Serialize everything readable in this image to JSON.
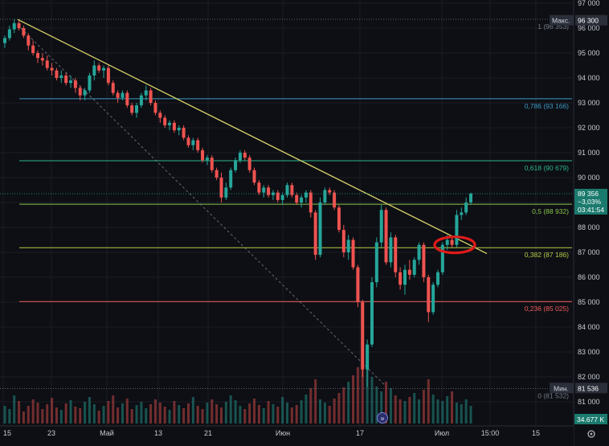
{
  "chart_data": {
    "type": "candlestick",
    "y_axis": {
      "min": 81000,
      "max": 97000,
      "ticks": [
        "97 000",
        "96 000",
        "95 000",
        "94 000",
        "93 000",
        "92 000",
        "91 000",
        "90 000",
        "89 000",
        "88 000",
        "87 000",
        "86 000",
        "85 000",
        "84 000",
        "83 000",
        "82 000",
        "81 000"
      ],
      "tick_values": [
        97000,
        96000,
        95000,
        94000,
        93000,
        92000,
        91000,
        90000,
        89000,
        88000,
        87000,
        86000,
        85000,
        84000,
        83000,
        82000,
        81000
      ]
    },
    "x_axis": {
      "ticks": [
        "15",
        "23",
        "Май",
        "13",
        "21",
        "Июн",
        "17",
        "Июл",
        "15:00",
        "15"
      ]
    },
    "fib_levels": [
      {
        "label": "1 (96 353)",
        "level": "1",
        "price": 96353,
        "color": "#787b86"
      },
      {
        "label": "0,786 (93 166)",
        "level": "0.786",
        "price": 93166,
        "color": "#3b99c2"
      },
      {
        "label": "0,618 (90 679)",
        "level": "0.618",
        "price": 90679,
        "color": "#2ab58a"
      },
      {
        "label": "0,5 (88 932)",
        "level": "0.5",
        "price": 88932,
        "color": "#8bc34a"
      },
      {
        "label": "0,382 (87 186)",
        "level": "0.382",
        "price": 87186,
        "color": "#b5cc43"
      },
      {
        "label": "0,236 (85 025)",
        "level": "0.236",
        "price": 85025,
        "color": "#f25c5c"
      },
      {
        "label": "0 (81 532)",
        "level": "0",
        "price": 81532,
        "color": "#787b86"
      }
    ],
    "max_marker": {
      "label": "Макс.",
      "value": "96 300",
      "price": 96300
    },
    "min_marker": {
      "label": "Мин.",
      "value": "81 536",
      "price": 81536
    },
    "last_price": {
      "value": "89 356",
      "change": "−3,03%",
      "countdown": "03:41:54",
      "price": 89356
    },
    "volume_label": "34.677 K",
    "trendline": {
      "from_price": 96350,
      "to_price": 86950,
      "color": "#d9d36a"
    },
    "diagonal": {
      "from_price": 96000,
      "to_price": 81700,
      "color": "#9a9ca5"
    },
    "highlight_ellipse_price": 87300,
    "candles": [
      [
        95400,
        95700,
        95200,
        95600
      ],
      [
        95600,
        96100,
        95500,
        95950
      ],
      [
        95950,
        96350,
        95800,
        96200
      ],
      [
        96200,
        96300,
        95900,
        96000
      ],
      [
        96000,
        96100,
        95600,
        95700
      ],
      [
        95700,
        95800,
        95100,
        95300
      ],
      [
        95300,
        95500,
        94900,
        95000
      ],
      [
        95000,
        95100,
        94600,
        94800
      ],
      [
        94800,
        95000,
        94500,
        94700
      ],
      [
        94700,
        94900,
        94300,
        94400
      ],
      [
        94400,
        94600,
        94100,
        94300
      ],
      [
        94300,
        94400,
        93900,
        94000
      ],
      [
        94000,
        94300,
        93800,
        94100
      ],
      [
        94100,
        94200,
        93700,
        93800
      ],
      [
        93800,
        94100,
        93600,
        93900
      ],
      [
        93900,
        94000,
        93400,
        93600
      ],
      [
        93600,
        93700,
        93100,
        93300
      ],
      [
        93300,
        93600,
        93100,
        93500
      ],
      [
        93500,
        94200,
        93400,
        94100
      ],
      [
        94100,
        94700,
        93900,
        94500
      ],
      [
        94500,
        94600,
        94200,
        94300
      ],
      [
        94300,
        94500,
        94000,
        94400
      ],
      [
        94400,
        94500,
        93700,
        93800
      ],
      [
        93800,
        93900,
        93300,
        93400
      ],
      [
        93400,
        93500,
        93000,
        93200
      ],
      [
        93200,
        93500,
        93100,
        93400
      ],
      [
        93400,
        93500,
        92800,
        92900
      ],
      [
        92900,
        93000,
        92500,
        92600
      ],
      [
        92600,
        93000,
        92400,
        92900
      ],
      [
        92900,
        93400,
        92800,
        93300
      ],
      [
        93300,
        93700,
        93100,
        93500
      ],
      [
        93500,
        93600,
        92900,
        93000
      ],
      [
        93000,
        93100,
        92500,
        92600
      ],
      [
        92600,
        92700,
        92200,
        92400
      ],
      [
        92400,
        92500,
        92000,
        92100
      ],
      [
        92100,
        92300,
        91900,
        92200
      ],
      [
        92200,
        92300,
        91800,
        91900
      ],
      [
        91900,
        92100,
        91700,
        92000
      ],
      [
        92000,
        92100,
        91500,
        91600
      ],
      [
        91600,
        91700,
        91200,
        91300
      ],
      [
        91300,
        91600,
        91100,
        91500
      ],
      [
        91500,
        91600,
        91000,
        91100
      ],
      [
        91100,
        91200,
        90600,
        90700
      ],
      [
        90700,
        90900,
        90500,
        90800
      ],
      [
        90800,
        90900,
        90200,
        90300
      ],
      [
        90300,
        90400,
        89900,
        90000
      ],
      [
        90000,
        90200,
        89000,
        89200
      ],
      [
        89200,
        89800,
        89100,
        89600
      ],
      [
        89600,
        90400,
        89500,
        90300
      ],
      [
        90300,
        90800,
        90200,
        90700
      ],
      [
        90700,
        91100,
        90600,
        91000
      ],
      [
        91000,
        91100,
        90700,
        90800
      ],
      [
        90800,
        90900,
        90200,
        90300
      ],
      [
        90300,
        90400,
        89700,
        89800
      ],
      [
        89800,
        89900,
        89300,
        89400
      ],
      [
        89400,
        89700,
        89200,
        89600
      ],
      [
        89600,
        89700,
        89200,
        89300
      ],
      [
        89300,
        89500,
        89100,
        89400
      ],
      [
        89400,
        89500,
        89000,
        89100
      ],
      [
        89100,
        89400,
        88900,
        89300
      ],
      [
        89300,
        89800,
        89200,
        89700
      ],
      [
        89700,
        89800,
        89200,
        89300
      ],
      [
        89300,
        89400,
        88900,
        89000
      ],
      [
        89000,
        89300,
        88800,
        89200
      ],
      [
        89200,
        89500,
        89000,
        89400
      ],
      [
        89400,
        89500,
        88400,
        88600
      ],
      [
        88600,
        88700,
        86700,
        86900
      ],
      [
        86900,
        89200,
        86800,
        89000
      ],
      [
        89000,
        89600,
        88900,
        89500
      ],
      [
        89500,
        89600,
        89300,
        89400
      ],
      [
        89400,
        89500,
        88700,
        88800
      ],
      [
        88800,
        88900,
        87800,
        87900
      ],
      [
        87900,
        88100,
        86800,
        87000
      ],
      [
        87000,
        87700,
        86700,
        87500
      ],
      [
        87500,
        87600,
        86300,
        86400
      ],
      [
        86400,
        86500,
        84800,
        85000
      ],
      [
        85000,
        85100,
        82000,
        82300
      ],
      [
        82300,
        83500,
        81600,
        83300
      ],
      [
        83300,
        86000,
        83200,
        85800
      ],
      [
        85800,
        87600,
        85600,
        87400
      ],
      [
        87400,
        88900,
        87200,
        88700
      ],
      [
        88700,
        88800,
        86500,
        86600
      ],
      [
        86600,
        87800,
        86400,
        87600
      ],
      [
        87600,
        87700,
        86000,
        86200
      ],
      [
        86200,
        86400,
        85500,
        85700
      ],
      [
        85700,
        86500,
        85300,
        86300
      ],
      [
        86300,
        86700,
        85900,
        86100
      ],
      [
        86100,
        86800,
        86000,
        86700
      ],
      [
        86700,
        87400,
        86500,
        87300
      ],
      [
        87300,
        87400,
        85800,
        86000
      ],
      [
        86000,
        86100,
        84200,
        84600
      ],
      [
        84600,
        85800,
        84500,
        85700
      ],
      [
        85700,
        86300,
        85600,
        86200
      ],
      [
        86200,
        87400,
        86100,
        87300
      ],
      [
        87300,
        87700,
        87100,
        87500
      ],
      [
        87500,
        87600,
        87200,
        87300
      ],
      [
        87300,
        88700,
        87200,
        88500
      ],
      [
        88500,
        88800,
        88300,
        88600
      ],
      [
        88600,
        89200,
        88500,
        89000
      ],
      [
        89000,
        89400,
        88900,
        89356
      ]
    ],
    "volumes": [
      22,
      18,
      35,
      28,
      15,
      22,
      30,
      26,
      18,
      24,
      32,
      20,
      17,
      25,
      29,
      21,
      19,
      27,
      33,
      24,
      16,
      22,
      28,
      35,
      20,
      25,
      31,
      18,
      23,
      27,
      19,
      24,
      30,
      26,
      21,
      17,
      28,
      23,
      19,
      25,
      33,
      22,
      18,
      26,
      30,
      24,
      20,
      27,
      35,
      29,
      22,
      18,
      25,
      31,
      23,
      19,
      28,
      24,
      21,
      33,
      26,
      20,
      23,
      29,
      36,
      44,
      55,
      30,
      26,
      22,
      31,
      38,
      45,
      52,
      60,
      70,
      95,
      80,
      58,
      46,
      40,
      52,
      44,
      35,
      30,
      28,
      33,
      38,
      30,
      42,
      55,
      36,
      30,
      28,
      34,
      40,
      26,
      24,
      30,
      22
    ]
  }
}
